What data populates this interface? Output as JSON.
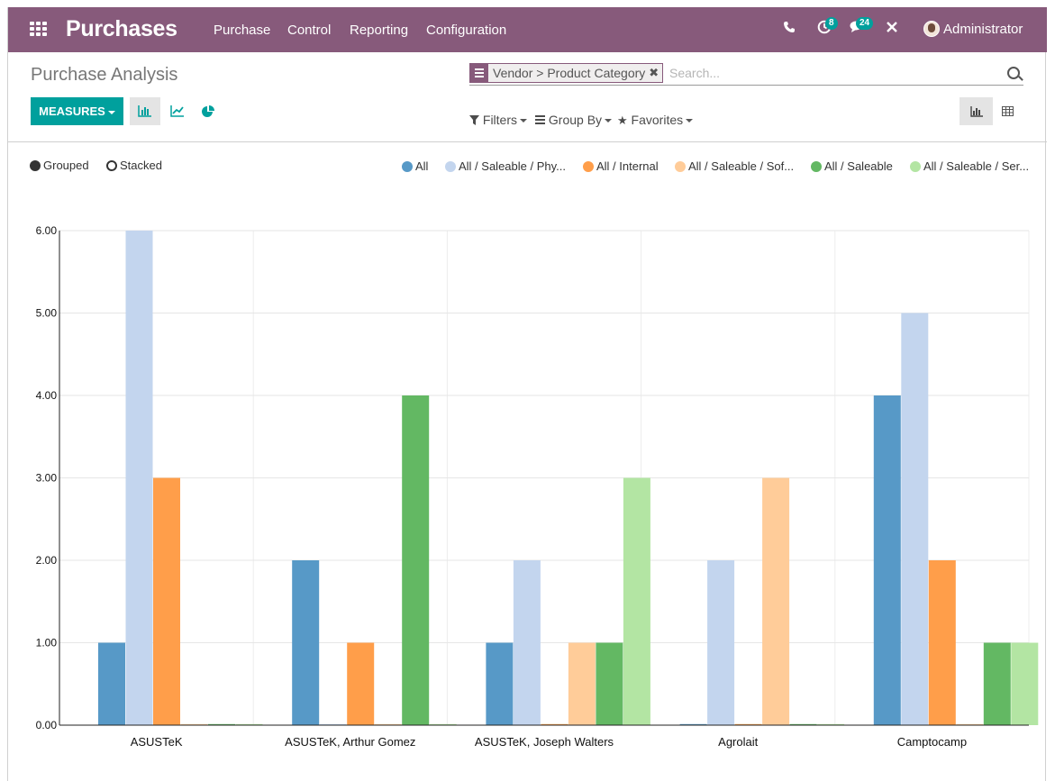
{
  "navbar": {
    "brand": "Purchases",
    "menus": [
      "Purchase",
      "Control",
      "Reporting",
      "Configuration"
    ],
    "activity_count": "8",
    "message_count": "24",
    "user": "Administrator"
  },
  "control_panel": {
    "title": "Purchase Analysis",
    "facet": "Vendor > Product Category",
    "search_placeholder": "Search...",
    "measures_label": "MEASURES",
    "filters_label": "Filters",
    "groupby_label": "Group By",
    "favorites_label": "Favorites"
  },
  "chart_options": {
    "grouped_label": "Grouped",
    "stacked_label": "Stacked",
    "selected": "Grouped"
  },
  "colors": {
    "brand": "#875a7b",
    "accent": "#00a09d"
  },
  "chart_data": {
    "type": "bar",
    "categories": [
      "ASUSTeK",
      "ASUSTeK, Arthur Gomez",
      "ASUSTeK, Joseph Walters",
      "Agrolait",
      "Camptocamp"
    ],
    "y_ticks": [
      "0.00",
      "1.00",
      "2.00",
      "3.00",
      "4.00",
      "5.00",
      "6.00"
    ],
    "ylim": [
      0,
      6
    ],
    "grid": true,
    "legend_position": "top-right",
    "series": [
      {
        "name": "All",
        "color": "#5799c7",
        "values": [
          1,
          2,
          1,
          0,
          4
        ]
      },
      {
        "name": "All / Saleable / Phy...",
        "color": "#c3d5ee",
        "values": [
          6,
          0,
          2,
          2,
          5
        ]
      },
      {
        "name": "All / Internal",
        "color": "#ff9e4a",
        "values": [
          3,
          1,
          0,
          0,
          2
        ]
      },
      {
        "name": "All / Saleable / Sof...",
        "color": "#ffcc99",
        "values": [
          0,
          0,
          1,
          3,
          0
        ]
      },
      {
        "name": "All / Saleable",
        "color": "#63b863",
        "values": [
          0,
          4,
          1,
          0,
          1
        ]
      },
      {
        "name": "All / Saleable / Ser...",
        "color": "#b3e5a3",
        "values": [
          0,
          0,
          3,
          0,
          1
        ]
      }
    ]
  }
}
